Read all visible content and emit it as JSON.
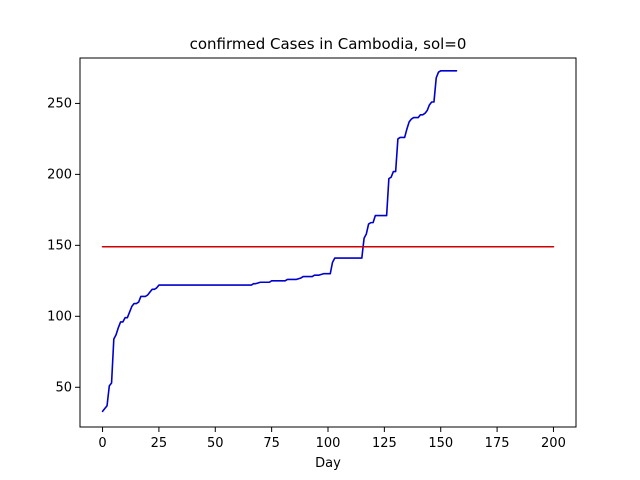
{
  "chart_data": {
    "type": "line",
    "title": "confirmed Cases in Cambodia, sol=0",
    "xlabel": "Day",
    "ylabel": "",
    "xlim": [
      -10,
      210
    ],
    "ylim": [
      22,
      282
    ],
    "xticks": [
      0,
      25,
      50,
      75,
      100,
      125,
      150,
      175,
      200
    ],
    "yticks": [
      50,
      100,
      150,
      200,
      250
    ],
    "grid": false,
    "legend": "none",
    "series": [
      {
        "color": "#0000cc",
        "x": [
          0,
          1,
          2,
          3,
          4,
          5,
          6,
          7,
          8,
          9,
          10,
          11,
          12,
          13,
          14,
          15,
          16,
          17,
          18,
          19,
          20,
          21,
          22,
          23,
          24,
          25,
          26,
          27,
          28,
          30,
          40,
          50,
          60,
          65,
          66,
          67,
          68,
          70,
          72,
          74,
          75,
          77,
          79,
          81,
          82,
          84,
          86,
          88,
          89,
          91,
          93,
          94,
          96,
          98,
          99,
          101,
          102,
          103,
          105,
          110,
          115,
          116,
          117,
          118,
          119,
          120,
          121,
          122,
          124,
          126,
          127,
          128,
          129,
          130,
          131,
          132,
          133,
          134,
          135,
          136,
          137,
          138,
          139,
          140,
          141,
          142,
          143,
          144,
          145,
          146,
          147,
          148,
          149,
          150,
          151,
          155,
          157
        ],
        "y": [
          33,
          35,
          37,
          51,
          53,
          84,
          87,
          92,
          96,
          96,
          99,
          99,
          103,
          107,
          109,
          109,
          110,
          114,
          114,
          114,
          115,
          117,
          119,
          119,
          120,
          122,
          122,
          122,
          122,
          122,
          122,
          122,
          122,
          122,
          122,
          123,
          123,
          124,
          124,
          124,
          125,
          125,
          125,
          125,
          126,
          126,
          126,
          127,
          128,
          128,
          128,
          129,
          129,
          130,
          130,
          130,
          138,
          141,
          141,
          141,
          141,
          155,
          158,
          165,
          166,
          166,
          171,
          171,
          171,
          171,
          197,
          198,
          202,
          202,
          225,
          226,
          226,
          226,
          232,
          237,
          239,
          240,
          240,
          240,
          242,
          242,
          243,
          245,
          249,
          251,
          251,
          268,
          272,
          273,
          273,
          273,
          273
        ]
      },
      {
        "color": "#cc0000",
        "x": [
          0,
          200
        ],
        "y": [
          149,
          149
        ]
      }
    ]
  }
}
